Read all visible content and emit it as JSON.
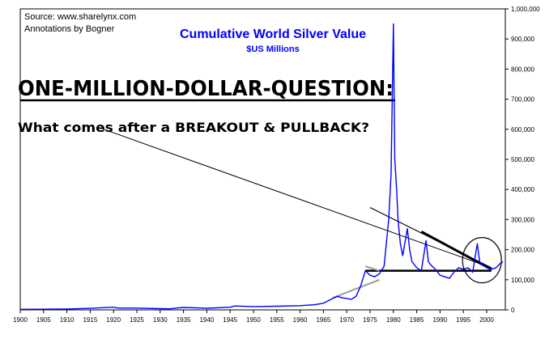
{
  "source_note": "Source: www.sharelynx.com",
  "annotations_note": "Annotations by Bogner",
  "headline": "ONE-MILLION-DOLLAR-QUESTION:",
  "question": "What comes after a BREAKOUT & PULLBACK?",
  "colors": {
    "series": "#0000ff",
    "title": "#0000ff",
    "annotation_line": "#000000",
    "gray_trendline": "#999999",
    "axis_text": "#000000",
    "frame": "#000000"
  },
  "chart_data": {
    "type": "line",
    "title": "Cumulative World Silver Value",
    "subtitle": "$US Millions",
    "xlabel": "",
    "ylabel": "",
    "xlim": [
      1900,
      2004
    ],
    "ylim": [
      0,
      1000000
    ],
    "grid": false,
    "y_axis_position": "right",
    "x_ticks": [
      "1900",
      "1905",
      "1910",
      "1915",
      "1920",
      "1925",
      "1930",
      "1935",
      "1940",
      "1945",
      "1950",
      "1955",
      "1960",
      "1965",
      "1970",
      "1975",
      "1980",
      "1985",
      "1990",
      "1995",
      "2000"
    ],
    "y_ticks": [
      "0",
      "100,000",
      "200,000",
      "300,000",
      "400,000",
      "500,000",
      "600,000",
      "700,000",
      "800,000",
      "900,000",
      "1,000,000"
    ],
    "series": [
      {
        "values": [
          [
            1900,
            2000
          ],
          [
            1910,
            3000
          ],
          [
            1915,
            5000
          ],
          [
            1920,
            9000
          ],
          [
            1921,
            6000
          ],
          [
            1925,
            6000
          ],
          [
            1930,
            4000
          ],
          [
            1932,
            3500
          ],
          [
            1935,
            8000
          ],
          [
            1940,
            5500
          ],
          [
            1945,
            9000
          ],
          [
            1946,
            13000
          ],
          [
            1950,
            11000
          ],
          [
            1955,
            12000
          ],
          [
            1960,
            14000
          ],
          [
            1963,
            17000
          ],
          [
            1965,
            22000
          ],
          [
            1967,
            38000
          ],
          [
            1968,
            45000
          ],
          [
            1969,
            40000
          ],
          [
            1970,
            38000
          ],
          [
            1971,
            35000
          ],
          [
            1972,
            45000
          ],
          [
            1973,
            80000
          ],
          [
            1974,
            130000
          ],
          [
            1975,
            115000
          ],
          [
            1976,
            110000
          ],
          [
            1977,
            120000
          ],
          [
            1978,
            145000
          ],
          [
            1979,
            300000
          ],
          [
            1979.5,
            450000
          ],
          [
            1980,
            950000
          ],
          [
            1980.3,
            500000
          ],
          [
            1980.7,
            400000
          ],
          [
            1981,
            300000
          ],
          [
            1981.5,
            220000
          ],
          [
            1982,
            180000
          ],
          [
            1983,
            270000
          ],
          [
            1983.5,
            200000
          ],
          [
            1984,
            160000
          ],
          [
            1985,
            140000
          ],
          [
            1986,
            130000
          ],
          [
            1987,
            230000
          ],
          [
            1987.5,
            160000
          ],
          [
            1988,
            150000
          ],
          [
            1989,
            135000
          ],
          [
            1990,
            115000
          ],
          [
            1991,
            110000
          ],
          [
            1992,
            105000
          ],
          [
            1993,
            125000
          ],
          [
            1994,
            140000
          ],
          [
            1995,
            135000
          ],
          [
            1996,
            140000
          ],
          [
            1997,
            125000
          ],
          [
            1998,
            220000
          ],
          [
            1998.5,
            160000
          ],
          [
            1999,
            150000
          ],
          [
            2000,
            140000
          ],
          [
            2001,
            135000
          ],
          [
            2002,
            140000
          ],
          [
            2003,
            155000
          ],
          [
            2003.5,
            160000
          ]
        ]
      }
    ],
    "annotations": {
      "long_downtrend": {
        "from": [
          1975,
          340000
        ],
        "to": [
          2001,
          140000
        ]
      },
      "short_downtrend": {
        "from": [
          1986,
          260000
        ],
        "to": [
          2001,
          135000
        ]
      },
      "support_line": {
        "from": [
          1974,
          130000
        ],
        "to": [
          2001,
          130000
        ]
      },
      "gray_trendline": {
        "from": [
          1967,
          40000
        ],
        "to": [
          1977,
          100000
        ]
      },
      "gray_trendline_upper": {
        "from": [
          1974,
          145000
        ],
        "to": [
          1977,
          130000
        ]
      },
      "circle_center": [
        1999,
        165000
      ],
      "pointer_from": [
        1917,
        605000
      ],
      "pointer_to": [
        2001,
        140000
      ]
    }
  }
}
